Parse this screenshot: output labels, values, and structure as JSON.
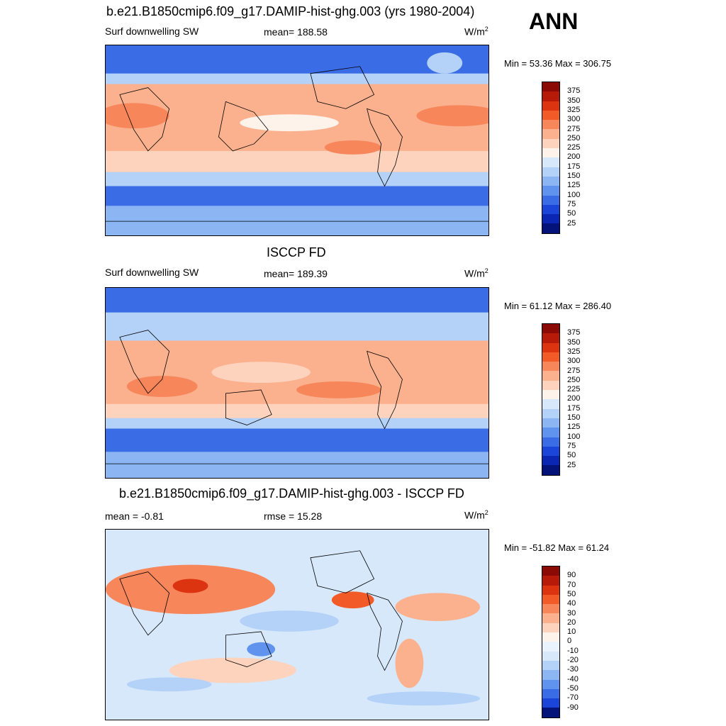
{
  "season": "ANN",
  "units_base": "W/m",
  "units_exp": "2",
  "panels": [
    {
      "title": "b.e21.B1850cmip6.f09_g17.DAMIP-hist-ghg.003 (yrs 1980-2004)",
      "left_label": "Surf downwelling SW",
      "center_label": "mean= 188.58",
      "minmax": "Min =  53.36 Max = 306.75"
    },
    {
      "title": "ISCCP FD",
      "left_label": "Surf downwelling SW",
      "center_label": "mean= 189.39",
      "minmax": "Min =  61.12 Max = 286.40"
    },
    {
      "title": "b.e21.B1850cmip6.f09_g17.DAMIP-hist-ghg.003 - ISCCP FD",
      "left_label": "mean =  -0.81",
      "center_label": "rmse =  15.28",
      "minmax": "Min = -51.82 Max =  61.24"
    }
  ],
  "colorbars": {
    "field_levels": [
      "375",
      "350",
      "325",
      "300",
      "275",
      "250",
      "225",
      "200",
      "175",
      "150",
      "125",
      "100",
      "75",
      "50",
      "25"
    ],
    "field_colors": [
      "#8b0a05",
      "#b81a0a",
      "#dc3410",
      "#f25a28",
      "#f7865a",
      "#fbb18e",
      "#fdd3bd",
      "#fef3ea",
      "#d7e8fb",
      "#b4d2f8",
      "#8bb6f3",
      "#5f93ee",
      "#3a6ce6",
      "#1a45d8",
      "#0a26b3",
      "#03137a"
    ],
    "diff_levels": [
      "90",
      "70",
      "50",
      "40",
      "30",
      "20",
      "10",
      "0",
      "-10",
      "-20",
      "-30",
      "-40",
      "-50",
      "-70",
      "-90"
    ],
    "diff_colors": [
      "#8b0a05",
      "#b81a0a",
      "#dc3410",
      "#f25a28",
      "#f7865a",
      "#fbb18e",
      "#fdd3bd",
      "#fef3ea",
      "#eaf3fd",
      "#d7e8fb",
      "#b4d2f8",
      "#8bb6f3",
      "#5f93ee",
      "#3a6ce6",
      "#1a45d8",
      "#03137a"
    ]
  }
}
